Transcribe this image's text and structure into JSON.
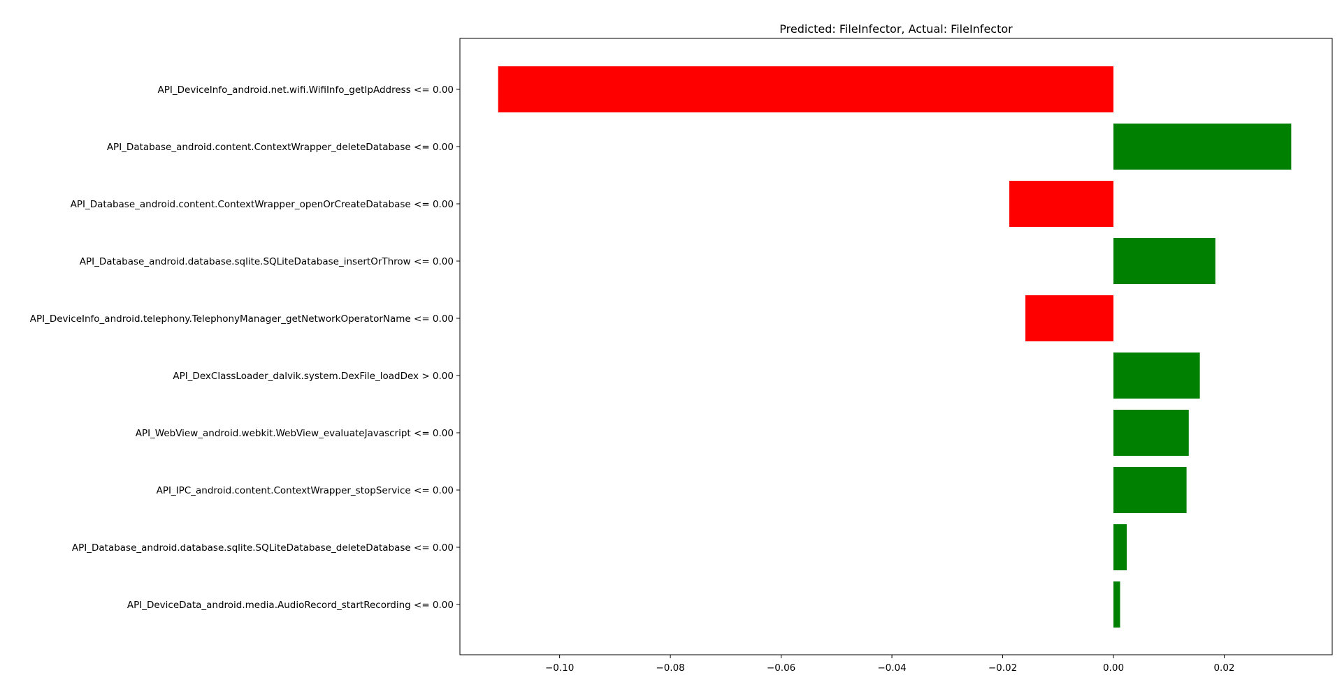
{
  "chart_data": {
    "type": "bar",
    "orientation": "horizontal",
    "title": "Predicted: FileInfector, Actual: FileInfector",
    "xlabel": "",
    "ylabel": "",
    "xlim": [
      -0.118,
      0.0395
    ],
    "x_ticks": [
      -0.1,
      -0.08,
      -0.06,
      -0.04,
      -0.02,
      0.0,
      0.02
    ],
    "x_tick_labels": [
      "−0.10",
      "−0.08",
      "−0.06",
      "−0.04",
      "−0.02",
      "0.00",
      "0.02"
    ],
    "grid": false,
    "legend": "none",
    "colors": {
      "positive": "#008000",
      "negative": "#ff0000",
      "axes": "#000000"
    },
    "categories": [
      "API_DeviceInfo_android.net.wifi.WifiInfo_getIpAddress <= 0.00",
      "API_Database_android.content.ContextWrapper_deleteDatabase <= 0.00",
      "API_Database_android.content.ContextWrapper_openOrCreateDatabase <= 0.00",
      "API_Database_android.database.sqlite.SQLiteDatabase_insertOrThrow <= 0.00",
      "API_DeviceInfo_android.telephony.TelephonyManager_getNetworkOperatorName <= 0.00",
      "API_DexClassLoader_dalvik.system.DexFile_loadDex > 0.00",
      "API_WebView_android.webkit.WebView_evaluateJavascript <= 0.00",
      "API_IPC_android.content.ContextWrapper_stopService <= 0.00",
      "API_Database_android.database.sqlite.SQLiteDatabase_deleteDatabase <= 0.00",
      "API_DeviceData_android.media.AudioRecord_startRecording <= 0.00"
    ],
    "values": [
      -0.1111,
      0.0321,
      -0.0188,
      0.0184,
      -0.0159,
      0.0156,
      0.0136,
      0.0132,
      0.0024,
      0.0012
    ]
  }
}
